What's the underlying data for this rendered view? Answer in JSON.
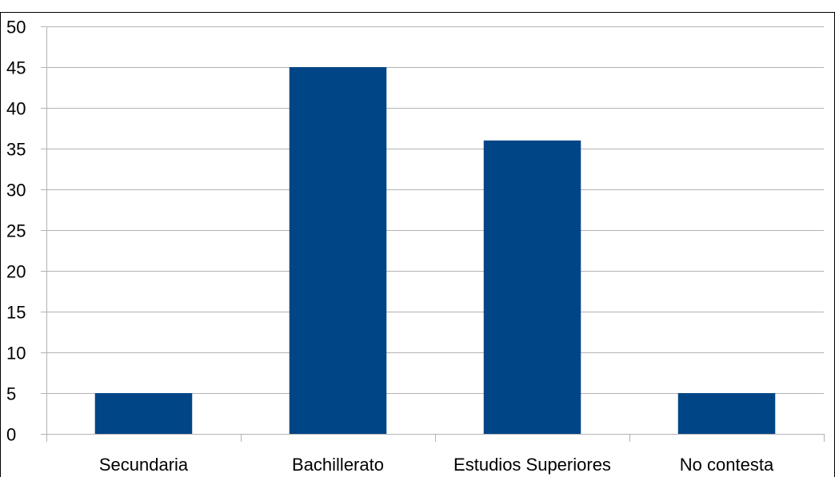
{
  "chart_data": {
    "type": "bar",
    "title": "",
    "xlabel": "",
    "ylabel": "",
    "categories": [
      "Secundaria",
      "Bachillerato",
      "Estudios Superiores",
      "No contesta"
    ],
    "values": [
      5,
      45,
      36,
      5
    ],
    "ylim": [
      0,
      50
    ],
    "yticks": [
      0,
      5,
      10,
      15,
      20,
      25,
      30,
      35,
      40,
      45,
      50
    ],
    "grid": true,
    "legend": "none",
    "colors": {
      "bar": "#004586",
      "grid": "#b3b3b3",
      "axis": "#b3b3b3",
      "frame": "#000000",
      "text": "#000000"
    }
  }
}
